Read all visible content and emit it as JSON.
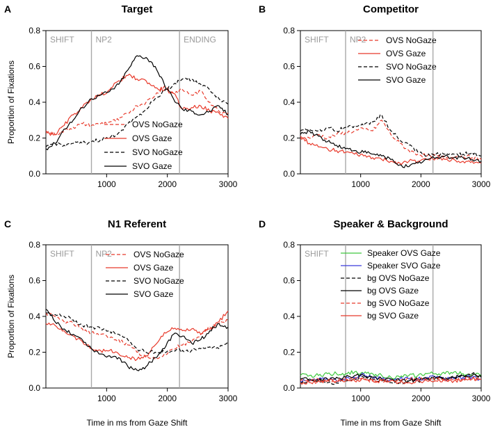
{
  "xlabel": "Time in ms from Gaze Shift",
  "ylabel": "Proportion of Fixations",
  "colors": {
    "red": "#e8392a",
    "black": "#000000",
    "green": "#3ec83e",
    "blue": "#3a3adc",
    "region": "#a8a8a8"
  },
  "chart_data": [
    {
      "type": "line",
      "panel": "A",
      "title": "Target",
      "xlim": [
        0,
        3000
      ],
      "ylim": [
        0,
        0.8
      ],
      "xticks": [
        1000,
        2000,
        3000
      ],
      "yticks": [
        0.0,
        0.2,
        0.4,
        0.6,
        0.8
      ],
      "regions": [
        {
          "label": "SHIFT",
          "start": 0
        },
        {
          "label": "NP2",
          "start": 750
        },
        {
          "label": "ENDING",
          "start": 2200
        }
      ],
      "x": [
        0,
        150,
        300,
        450,
        600,
        750,
        900,
        1050,
        1200,
        1350,
        1500,
        1650,
        1800,
        1950,
        2100,
        2250,
        2400,
        2550,
        2700,
        2850,
        3000
      ],
      "series": [
        {
          "name": "OVS NoGaze",
          "color": "red",
          "dash": true,
          "values": [
            0.24,
            0.22,
            0.24,
            0.26,
            0.28,
            0.27,
            0.28,
            0.29,
            0.3,
            0.34,
            0.38,
            0.4,
            0.44,
            0.49,
            0.45,
            0.47,
            0.44,
            0.46,
            0.4,
            0.35,
            0.34
          ]
        },
        {
          "name": "OVS Gaze",
          "color": "red",
          "dash": false,
          "values": [
            0.23,
            0.22,
            0.27,
            0.33,
            0.37,
            0.42,
            0.44,
            0.47,
            0.52,
            0.55,
            0.53,
            0.52,
            0.48,
            0.47,
            0.45,
            0.36,
            0.37,
            0.38,
            0.35,
            0.34,
            0.31
          ]
        },
        {
          "name": "SVO NoGaze",
          "color": "black",
          "dash": true,
          "values": [
            0.15,
            0.17,
            0.16,
            0.17,
            0.17,
            0.18,
            0.19,
            0.2,
            0.23,
            0.28,
            0.32,
            0.36,
            0.42,
            0.46,
            0.5,
            0.53,
            0.53,
            0.5,
            0.47,
            0.42,
            0.39
          ]
        },
        {
          "name": "SVO Gaze",
          "color": "black",
          "dash": false,
          "values": [
            0.14,
            0.17,
            0.25,
            0.3,
            0.37,
            0.42,
            0.44,
            0.46,
            0.5,
            0.58,
            0.66,
            0.65,
            0.6,
            0.5,
            0.42,
            0.36,
            0.35,
            0.33,
            0.35,
            0.38,
            0.33
          ]
        }
      ]
    },
    {
      "type": "line",
      "panel": "B",
      "title": "Competitor",
      "xlim": [
        0,
        3000
      ],
      "ylim": [
        0,
        0.8
      ],
      "xticks": [
        1000,
        2000,
        3000
      ],
      "yticks": [
        0.0,
        0.2,
        0.4,
        0.6,
        0.8
      ],
      "regions": [
        {
          "label": "SHIFT",
          "start": 0
        },
        {
          "label": "NP2",
          "start": 750
        },
        {
          "label": "",
          "start": 2200
        }
      ],
      "x": [
        0,
        150,
        300,
        450,
        600,
        750,
        900,
        1050,
        1200,
        1350,
        1500,
        1650,
        1800,
        1950,
        2100,
        2250,
        2400,
        2550,
        2700,
        2850,
        3000
      ],
      "series": [
        {
          "name": "OVS NoGaze",
          "color": "red",
          "dash": true,
          "values": [
            0.2,
            0.2,
            0.22,
            0.2,
            0.22,
            0.23,
            0.24,
            0.25,
            0.24,
            0.3,
            0.22,
            0.17,
            0.13,
            0.11,
            0.1,
            0.1,
            0.09,
            0.1,
            0.1,
            0.09,
            0.08
          ]
        },
        {
          "name": "OVS Gaze",
          "color": "red",
          "dash": false,
          "values": [
            0.21,
            0.17,
            0.15,
            0.14,
            0.13,
            0.12,
            0.11,
            0.1,
            0.09,
            0.08,
            0.07,
            0.06,
            0.07,
            0.07,
            0.08,
            0.09,
            0.08,
            0.08,
            0.07,
            0.07,
            0.06
          ]
        },
        {
          "name": "SVO NoGaze",
          "color": "black",
          "dash": true,
          "values": [
            0.24,
            0.25,
            0.24,
            0.26,
            0.24,
            0.26,
            0.27,
            0.27,
            0.29,
            0.33,
            0.24,
            0.19,
            0.16,
            0.12,
            0.1,
            0.11,
            0.11,
            0.11,
            0.11,
            0.12,
            0.1
          ]
        },
        {
          "name": "SVO Gaze",
          "color": "black",
          "dash": false,
          "values": [
            0.22,
            0.24,
            0.21,
            0.18,
            0.16,
            0.14,
            0.13,
            0.12,
            0.11,
            0.1,
            0.08,
            0.05,
            0.04,
            0.06,
            0.08,
            0.09,
            0.1,
            0.09,
            0.09,
            0.08,
            0.07
          ]
        }
      ]
    },
    {
      "type": "line",
      "panel": "C",
      "title": "N1 Referent",
      "xlim": [
        0,
        3000
      ],
      "ylim": [
        0,
        0.8
      ],
      "xticks": [
        1000,
        2000,
        3000
      ],
      "yticks": [
        0.0,
        0.2,
        0.4,
        0.6,
        0.8
      ],
      "regions": [
        {
          "label": "SHIFT",
          "start": 0
        },
        {
          "label": "NP2",
          "start": 750
        },
        {
          "label": "",
          "start": 2200
        }
      ],
      "x": [
        0,
        150,
        300,
        450,
        600,
        750,
        900,
        1050,
        1200,
        1350,
        1500,
        1650,
        1800,
        1950,
        2100,
        2250,
        2400,
        2550,
        2700,
        2850,
        3000
      ],
      "series": [
        {
          "name": "OVS NoGaze",
          "color": "red",
          "dash": true,
          "values": [
            0.42,
            0.4,
            0.37,
            0.36,
            0.33,
            0.31,
            0.3,
            0.28,
            0.27,
            0.24,
            0.2,
            0.17,
            0.16,
            0.19,
            0.22,
            0.24,
            0.26,
            0.3,
            0.34,
            0.36,
            0.38
          ]
        },
        {
          "name": "OVS Gaze",
          "color": "red",
          "dash": false,
          "values": [
            0.36,
            0.35,
            0.32,
            0.29,
            0.26,
            0.22,
            0.21,
            0.21,
            0.19,
            0.17,
            0.16,
            0.18,
            0.24,
            0.31,
            0.33,
            0.32,
            0.33,
            0.3,
            0.33,
            0.37,
            0.43
          ]
        },
        {
          "name": "SVO NoGaze",
          "color": "black",
          "dash": true,
          "values": [
            0.42,
            0.41,
            0.4,
            0.38,
            0.35,
            0.34,
            0.33,
            0.32,
            0.3,
            0.27,
            0.22,
            0.2,
            0.2,
            0.2,
            0.21,
            0.21,
            0.21,
            0.22,
            0.23,
            0.22,
            0.26
          ]
        },
        {
          "name": "SVO Gaze",
          "color": "black",
          "dash": false,
          "values": [
            0.44,
            0.37,
            0.33,
            0.3,
            0.27,
            0.22,
            0.19,
            0.18,
            0.17,
            0.12,
            0.1,
            0.12,
            0.17,
            0.22,
            0.3,
            0.29,
            0.25,
            0.27,
            0.32,
            0.36,
            0.34
          ]
        }
      ]
    },
    {
      "type": "line",
      "panel": "D",
      "title": "Speaker & Background",
      "xlim": [
        0,
        3000
      ],
      "ylim": [
        0,
        0.8
      ],
      "xticks": [
        1000,
        2000,
        3000
      ],
      "yticks": [
        0.0,
        0.2,
        0.4,
        0.6,
        0.8
      ],
      "regions": [
        {
          "label": "SHIFT",
          "start": 0
        },
        {
          "label": "",
          "start": 750
        },
        {
          "label": "",
          "start": 2200
        }
      ],
      "x": [
        0,
        150,
        300,
        450,
        600,
        750,
        900,
        1050,
        1200,
        1350,
        1500,
        1650,
        1800,
        1950,
        2100,
        2250,
        2400,
        2550,
        2700,
        2850,
        3000
      ],
      "series": [
        {
          "name": "Speaker OVS Gaze",
          "color": "green",
          "dash": false,
          "values": [
            0.07,
            0.07,
            0.07,
            0.08,
            0.08,
            0.08,
            0.09,
            0.08,
            0.08,
            0.07,
            0.06,
            0.06,
            0.07,
            0.07,
            0.08,
            0.08,
            0.08,
            0.09,
            0.08,
            0.08,
            0.07
          ]
        },
        {
          "name": "Speaker SVO Gaze",
          "color": "blue",
          "dash": false,
          "values": [
            0.04,
            0.04,
            0.05,
            0.05,
            0.04,
            0.05,
            0.06,
            0.08,
            0.06,
            0.05,
            0.05,
            0.05,
            0.05,
            0.05,
            0.06,
            0.06,
            0.05,
            0.05,
            0.06,
            0.06,
            0.05
          ]
        },
        {
          "name": "bg OVS NoGaze",
          "color": "black",
          "dash": true,
          "values": [
            0.03,
            0.04,
            0.04,
            0.03,
            0.03,
            0.04,
            0.05,
            0.06,
            0.05,
            0.04,
            0.03,
            0.03,
            0.04,
            0.04,
            0.05,
            0.06,
            0.06,
            0.06,
            0.07,
            0.08,
            0.07
          ]
        },
        {
          "name": "bg OVS Gaze",
          "color": "black",
          "dash": false,
          "values": [
            0.05,
            0.05,
            0.04,
            0.05,
            0.06,
            0.06,
            0.07,
            0.07,
            0.06,
            0.05,
            0.05,
            0.04,
            0.04,
            0.05,
            0.05,
            0.06,
            0.05,
            0.06,
            0.07,
            0.07,
            0.06
          ]
        },
        {
          "name": "bg SVO NoGaze",
          "color": "red",
          "dash": true,
          "values": [
            0.04,
            0.04,
            0.05,
            0.04,
            0.04,
            0.05,
            0.05,
            0.05,
            0.04,
            0.04,
            0.04,
            0.04,
            0.05,
            0.05,
            0.05,
            0.05,
            0.05,
            0.05,
            0.05,
            0.05,
            0.05
          ]
        },
        {
          "name": "bg SVO Gaze",
          "color": "red",
          "dash": false,
          "values": [
            0.03,
            0.03,
            0.04,
            0.04,
            0.04,
            0.04,
            0.04,
            0.05,
            0.04,
            0.04,
            0.04,
            0.03,
            0.03,
            0.04,
            0.04,
            0.04,
            0.04,
            0.04,
            0.05,
            0.05,
            0.05
          ]
        }
      ]
    }
  ]
}
